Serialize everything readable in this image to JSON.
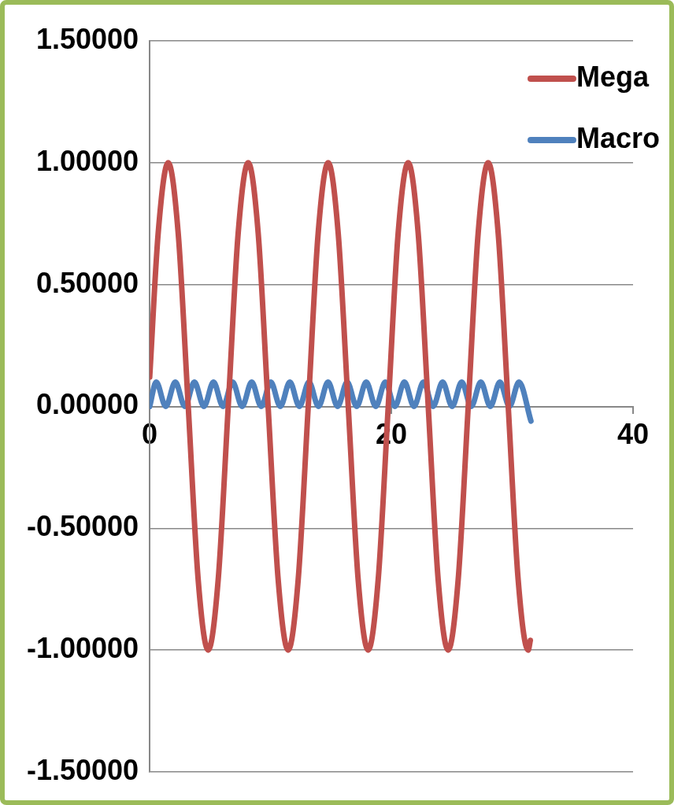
{
  "chart_data": {
    "type": "line",
    "xlim": [
      0,
      40
    ],
    "xticks": [
      0,
      20,
      40
    ],
    "ylim": [
      -1.5,
      1.5
    ],
    "yticks": [
      {
        "value": -1.5,
        "label": "-1.50000"
      },
      {
        "value": -1,
        "label": "-1.00000"
      },
      {
        "value": -0.5,
        "label": "-0.50000"
      },
      {
        "value": 0,
        "label": "0.00000"
      },
      {
        "value": 0.5,
        "label": "0.50000"
      },
      {
        "value": 1,
        "label": "1.00000"
      },
      {
        "value": 1.5,
        "label": "1.50000"
      }
    ],
    "grid": "y",
    "legend": "top right",
    "marker": "none",
    "line_style": "solid",
    "series": [
      {
        "name": "Mega",
        "color": "#c0504d",
        "x": [
          0,
          0.7,
          1.53,
          2.36,
          3.19,
          4.01,
          4.84,
          5.67,
          6.5,
          7.32,
          8.15,
          8.98,
          9.8,
          10.63,
          11.46,
          12.29,
          13.12,
          13.94,
          14.77,
          15.6,
          16.43,
          17.25,
          18.08,
          18.91,
          19.74,
          20.56,
          21.39,
          22.22,
          23.05,
          23.87,
          24.7,
          25.53,
          26.36,
          27.18,
          28.01,
          28.84,
          29.67,
          30.49,
          31.32,
          31.5
        ],
        "values": [
          0.12,
          0.71,
          1,
          0.71,
          0,
          -0.71,
          -1,
          -0.71,
          0,
          0.71,
          1,
          0.71,
          0,
          -0.71,
          -1,
          -0.71,
          0,
          0.71,
          1,
          0.71,
          0,
          -0.71,
          -1,
          -0.71,
          0,
          0.71,
          1,
          0.71,
          0,
          -0.71,
          -1,
          -0.71,
          0,
          0.71,
          1,
          0.71,
          0,
          -0.71,
          -1,
          -0.96
        ]
      },
      {
        "name": "Macro",
        "color": "#4f81bd",
        "x": [
          0,
          0.54,
          1.33,
          2.12,
          2.91,
          3.7,
          4.49,
          5.28,
          6.07,
          6.86,
          7.65,
          8.44,
          9.23,
          10.02,
          10.81,
          11.6,
          12.39,
          13.18,
          13.97,
          14.76,
          15.55,
          16.34,
          17.13,
          17.92,
          18.71,
          19.5,
          20.29,
          21.08,
          21.87,
          22.66,
          23.45,
          24.24,
          25.03,
          25.82,
          26.61,
          27.4,
          28.19,
          28.98,
          29.77,
          30.56,
          31.55
        ],
        "values": [
          0,
          0.1,
          0,
          0.1,
          0,
          0.1,
          0,
          0.1,
          0,
          0.1,
          0,
          0.1,
          0,
          0.1,
          0,
          0.1,
          0,
          0.1,
          0,
          0.1,
          0,
          0.1,
          0,
          0.1,
          0,
          0.1,
          0,
          0.1,
          0,
          0.1,
          0,
          0.1,
          0,
          0.1,
          0,
          0.1,
          0,
          0.1,
          0,
          0.1,
          -0.06
        ]
      }
    ]
  }
}
